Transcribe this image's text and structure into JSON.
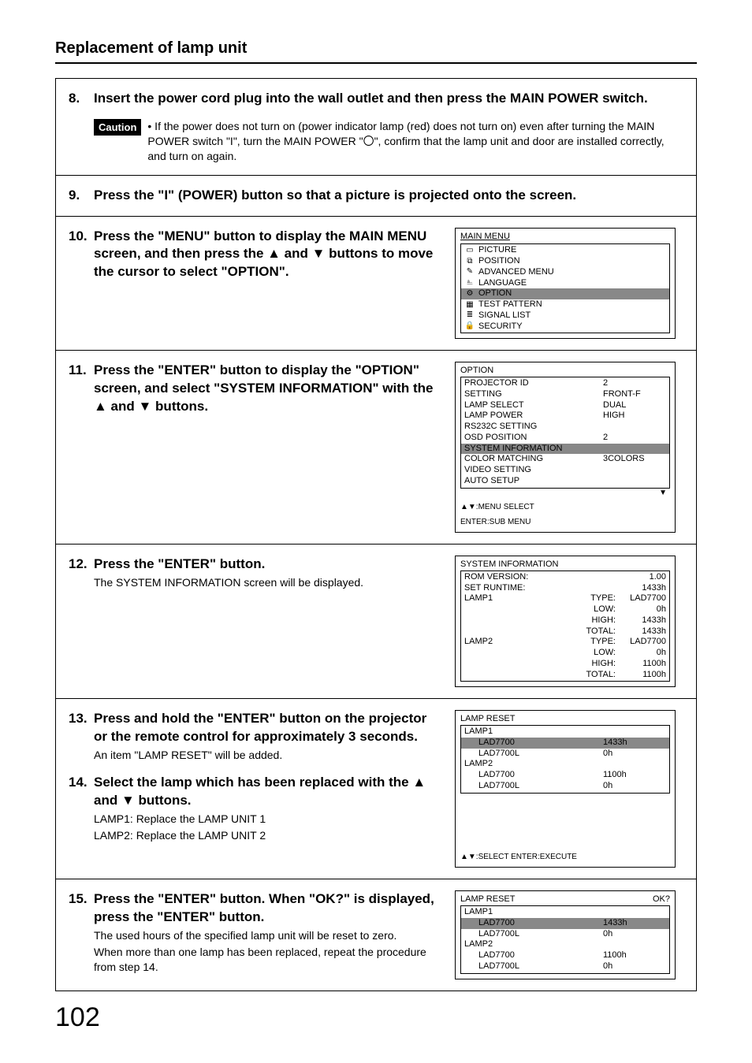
{
  "page": {
    "title": "Replacement of lamp unit",
    "number": "102"
  },
  "step8": {
    "num": "8.",
    "head": "Insert the power cord plug into the wall outlet and then press the MAIN POWER switch.",
    "caution_label": "Caution",
    "caution_text": "• If the power does not turn on (power indicator lamp (red) does not turn on) even after turning the MAIN POWER switch \"I\", turn the MAIN POWER \"〇\", confirm that the lamp unit and door are installed correctly, and turn on again."
  },
  "step9": {
    "num": "9.",
    "head": "Press the \"I\" (POWER) button so that a picture is projected onto the screen."
  },
  "step10": {
    "num": "10.",
    "head": "Press the \"MENU\" button to display the MAIN MENU screen, and then press the ▲ and ▼ buttons to move the cursor to select \"OPTION\".",
    "menu_title": "MAIN MENU",
    "items": [
      {
        "icon": "▭",
        "label": "PICTURE"
      },
      {
        "icon": "⧉",
        "label": "POSITION"
      },
      {
        "icon": "✎",
        "label": "ADVANCED MENU"
      },
      {
        "icon": "⎁",
        "label": "LANGUAGE"
      },
      {
        "icon": "⚙",
        "label": "OPTION",
        "hl": true
      },
      {
        "icon": "▦",
        "label": "TEST PATTERN"
      },
      {
        "icon": "≣",
        "label": "SIGNAL LIST"
      },
      {
        "icon": "🔒",
        "label": "SECURITY"
      }
    ]
  },
  "step11": {
    "num": "11.",
    "head": "Press the \"ENTER\" button to display the \"OPTION\" screen, and select \"SYSTEM INFORMATION\" with the ▲ and ▼ buttons.",
    "menu_title": "OPTION",
    "rows": [
      {
        "k": "PROJECTOR ID",
        "v": "2"
      },
      {
        "k": "SETTING",
        "v": "FRONT-F"
      },
      {
        "k": "LAMP SELECT",
        "v": "DUAL"
      },
      {
        "k": "LAMP POWER",
        "v": "HIGH"
      },
      {
        "k": "RS232C SETTING",
        "v": ""
      },
      {
        "k": "OSD POSITION",
        "v": "2"
      },
      {
        "k": "SYSTEM INFORMATION",
        "v": "",
        "hl": true
      },
      {
        "k": "COLOR MATCHING",
        "v": "3COLORS"
      },
      {
        "k": "VIDEO SETTING",
        "v": ""
      },
      {
        "k": "AUTO SETUP",
        "v": ""
      }
    ],
    "hint1": "▲▼:MENU SELECT",
    "hint2": "ENTER:SUB MENU"
  },
  "step12": {
    "num": "12.",
    "head": "Press the \"ENTER\" button.",
    "body": "The SYSTEM INFORMATION screen will be displayed.",
    "menu_title": "SYSTEM INFORMATION",
    "rows": [
      {
        "c1": "ROM VERSION:",
        "c2": "",
        "c3": "1.00"
      },
      {
        "c1": "SET RUNTIME:",
        "c2": "",
        "c3": "1433h"
      },
      {
        "c1": "LAMP1",
        "c2": "TYPE:",
        "c3": "LAD7700"
      },
      {
        "c1": "",
        "c2": "LOW:",
        "c3": "0h"
      },
      {
        "c1": "",
        "c2": "HIGH:",
        "c3": "1433h"
      },
      {
        "c1": "",
        "c2": "TOTAL:",
        "c3": "1433h"
      },
      {
        "c1": "LAMP2",
        "c2": "TYPE:",
        "c3": "LAD7700"
      },
      {
        "c1": "",
        "c2": "LOW:",
        "c3": "0h"
      },
      {
        "c1": "",
        "c2": "HIGH:",
        "c3": "1100h"
      },
      {
        "c1": "",
        "c2": "TOTAL:",
        "c3": "1100h"
      }
    ]
  },
  "step13": {
    "num": "13.",
    "head": "Press and hold the \"ENTER\" button on the projector or the remote control for approximately 3 seconds.",
    "body": "An item \"LAMP RESET\" will be added."
  },
  "step14": {
    "num": "14.",
    "head": "Select the lamp which has been replaced with the ▲ and ▼ buttons.",
    "body1": "LAMP1: Replace the LAMP UNIT 1",
    "body2": "LAMP2: Replace the LAMP UNIT 2",
    "menu_title": "LAMP RESET",
    "rows": [
      {
        "k": "LAMP1",
        "v": "",
        "sub": false
      },
      {
        "k": "LAD7700",
        "v": "1433h",
        "sub": true,
        "hl": true
      },
      {
        "k": "LAD7700L",
        "v": "0h",
        "sub": true
      },
      {
        "k": "LAMP2",
        "v": "",
        "sub": false
      },
      {
        "k": "LAD7700",
        "v": "1100h",
        "sub": true
      },
      {
        "k": "LAD7700L",
        "v": "0h",
        "sub": true
      }
    ],
    "hint": "▲▼:SELECT   ENTER:EXECUTE"
  },
  "step15": {
    "num": "15.",
    "head": "Press the \"ENTER\" button. When \"OK?\" is displayed, press the \"ENTER\" button.",
    "body1": "The used hours of the specified lamp unit will be reset to zero.",
    "body2": "When more than one lamp has been replaced, repeat the procedure from step 14.",
    "menu_title": "LAMP RESET",
    "ok": "OK?",
    "rows": [
      {
        "k": "LAMP1",
        "v": "",
        "sub": false
      },
      {
        "k": "LAD7700",
        "v": "1433h",
        "sub": true,
        "hl": true
      },
      {
        "k": "LAD7700L",
        "v": "0h",
        "sub": true
      },
      {
        "k": "LAMP2",
        "v": "",
        "sub": false
      },
      {
        "k": "LAD7700",
        "v": "1100h",
        "sub": true
      },
      {
        "k": "LAD7700L",
        "v": "0h",
        "sub": true
      }
    ]
  }
}
